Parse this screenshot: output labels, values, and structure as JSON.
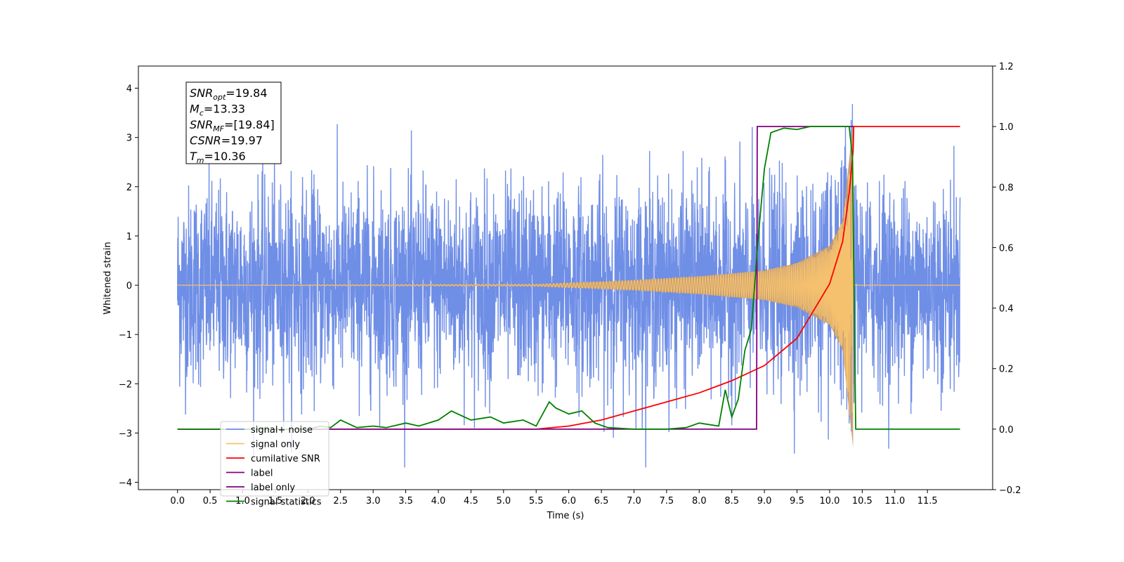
{
  "chart_data": {
    "type": "line",
    "xlabel": "Time (s)",
    "ylabel": "Whitened strain",
    "xlim": [
      -0.6,
      12.5
    ],
    "ylim": [
      -4.15,
      4.45
    ],
    "y2lim": [
      -0.2,
      1.2
    ],
    "x_ticks": [
      "0.0",
      "0.5",
      "1.0",
      "1.5",
      "2.0",
      "2.5",
      "3.0",
      "3.5",
      "4.0",
      "4.5",
      "5.0",
      "5.5",
      "6.0",
      "6.5",
      "7.0",
      "7.5",
      "8.0",
      "8.5",
      "9.0",
      "9.5",
      "10.0",
      "10.5",
      "11.0",
      "11.5"
    ],
    "y_ticks": [
      "4",
      "3",
      "2",
      "1",
      "0",
      "−1",
      "−2",
      "−3",
      "−4"
    ],
    "y2_ticks": [
      "1.2",
      "1.0",
      "0.8",
      "0.6",
      "0.4",
      "0.2",
      "0.0",
      "−0.2"
    ],
    "grid": false,
    "legend_placement": "lower-left",
    "series": [
      {
        "name": "signal+ noise",
        "axis": "left",
        "color": "#6f8ee6",
        "noise_amplitude": 1.0,
        "t_range": [
          0.0,
          12.0
        ]
      },
      {
        "name": "signal only",
        "axis": "left",
        "color": "#f5c16e",
        "envelope": {
          "t": [
            0,
            5.5,
            7.0,
            8.0,
            9.0,
            9.5,
            10.0,
            10.2,
            10.36
          ],
          "a": [
            0.0,
            0.02,
            0.1,
            0.18,
            0.3,
            0.45,
            0.8,
            1.3,
            3.3
          ]
        },
        "merger_time": 10.36
      },
      {
        "name": "cumilative SNR",
        "axis": "right",
        "color": "#ff0000",
        "x": [
          0,
          5.5,
          6.0,
          6.5,
          7.0,
          7.5,
          8.0,
          8.5,
          9.0,
          9.5,
          10.0,
          10.2,
          10.3,
          10.36,
          10.37,
          12.0
        ],
        "y": [
          0,
          0,
          0.01,
          0.03,
          0.06,
          0.09,
          0.12,
          0.16,
          0.21,
          0.3,
          0.48,
          0.62,
          0.78,
          0.92,
          1.0,
          1.0
        ]
      },
      {
        "name": "label",
        "axis": "right",
        "color": "#800080",
        "x": [
          0,
          8.88,
          8.89,
          10.36,
          10.37,
          10.37
        ],
        "y": [
          0,
          0,
          1.0,
          1.0,
          1.0,
          1.0
        ]
      },
      {
        "name": "label only",
        "axis": "right",
        "color": "#800080",
        "x": [],
        "y": []
      },
      {
        "name": "signal statistics",
        "axis": "right",
        "color": "#008000",
        "x": [
          0,
          2.0,
          2.2,
          2.35,
          2.5,
          2.6,
          2.75,
          3.0,
          3.2,
          3.5,
          3.7,
          4.0,
          4.2,
          4.5,
          4.8,
          5.0,
          5.3,
          5.5,
          5.7,
          5.8,
          6.0,
          6.2,
          6.4,
          6.6,
          7.0,
          7.5,
          7.8,
          8.0,
          8.3,
          8.4,
          8.5,
          8.6,
          8.7,
          8.8,
          8.9,
          9.0,
          9.1,
          9.3,
          9.5,
          9.7,
          9.9,
          10.0,
          10.3,
          10.35,
          10.4,
          12.0
        ],
        "y": [
          0,
          0,
          0.01,
          0.005,
          0.03,
          0.02,
          0.005,
          0.01,
          0.005,
          0.02,
          0.01,
          0.03,
          0.06,
          0.03,
          0.04,
          0.02,
          0.03,
          0.01,
          0.09,
          0.07,
          0.05,
          0.06,
          0.02,
          0.005,
          0.0,
          0.0,
          0.005,
          0.02,
          0.01,
          0.13,
          0.04,
          0.1,
          0.26,
          0.33,
          0.62,
          0.86,
          0.98,
          0.995,
          0.99,
          1.0,
          1.0,
          1.0,
          1.0,
          0.9,
          0.0,
          0.0
        ]
      }
    ],
    "annotation_lines": [
      {
        "base": "SNR",
        "sub": "opt",
        "value": "=19.84"
      },
      {
        "base": "M",
        "sub": "c",
        "value": "=13.33"
      },
      {
        "base": "SNR",
        "sub": "MF",
        "value": "=[19.84]"
      },
      {
        "base": "CSNR",
        "sub": "",
        "value": "=19.97"
      },
      {
        "base": "T",
        "sub": "m",
        "value": "=10.36"
      }
    ]
  }
}
